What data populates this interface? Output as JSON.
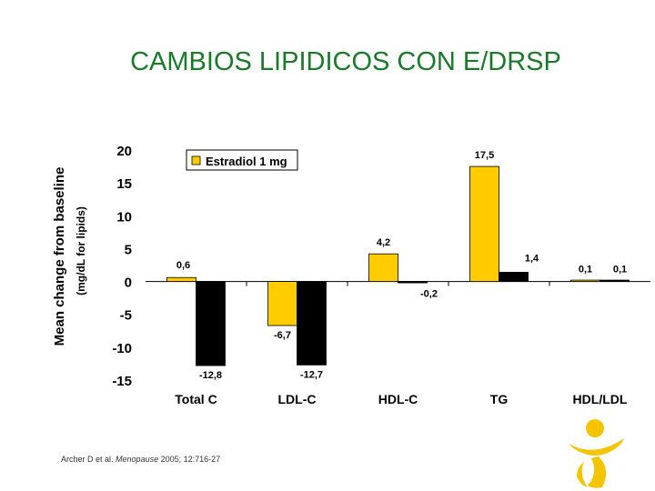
{
  "slide": {
    "title": "CAMBIOS LIPIDICOS CON E/DRSP",
    "citation": {
      "authors": "Archer D et al.",
      "journal": "Menopause",
      "details": "2005; 12:716-27"
    }
  },
  "colors": {
    "title": "#1a7a2a",
    "series_1": "#ffcc00",
    "series_2": "#000000",
    "logo": "#f5c400"
  },
  "chart_data": {
    "type": "bar",
    "ylabel": "Mean change from baseline",
    "ylabel_sub": "(mg/dL for lipids)",
    "ylim": [
      -15,
      20
    ],
    "yticks": [
      "20",
      "15",
      "10",
      "5",
      "0",
      "-5",
      "-10",
      "-15"
    ],
    "grid": false,
    "legend_position": "top-left",
    "categories": [
      "Total C",
      "LDL-C",
      "HDL-C",
      "TG",
      "HDL/LDL"
    ],
    "series": [
      {
        "name": "Estradiol 1 mg",
        "values": [
          0.6,
          -6.7,
          4.2,
          17.5,
          0.1
        ],
        "labels": [
          "0,6",
          "-6,7",
          "4,2",
          "17,5",
          "0,1"
        ]
      },
      {
        "values": [
          -12.8,
          -12.7,
          -0.2,
          1.4,
          0.1
        ],
        "labels": [
          "-12,8",
          "-12,7",
          "-0,2",
          "1,4",
          "0,1"
        ]
      }
    ]
  }
}
